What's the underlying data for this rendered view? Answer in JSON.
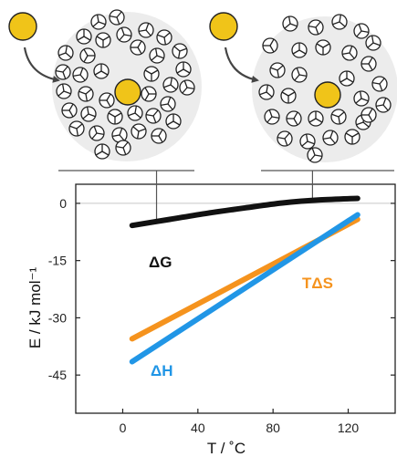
{
  "chart_data": {
    "type": "line",
    "xlabel": "T / ˚C",
    "ylabel": "E / kJ mol⁻¹",
    "xlim": [
      -25,
      145
    ],
    "ylim": [
      -55,
      5
    ],
    "xticks": [
      "0",
      "40",
      "80",
      "120"
    ],
    "yticks": [
      "0",
      "-15",
      "-30",
      "-45"
    ],
    "xtick_values": [
      0,
      40,
      80,
      120
    ],
    "ytick_values": [
      0,
      -15,
      -30,
      -45
    ],
    "grid": false,
    "zero_line": true,
    "series": [
      {
        "name": "ΔG",
        "color": "#111111",
        "x": [
          5,
          25,
          45,
          65,
          85,
          105,
          125
        ],
        "y": [
          -5.8,
          -4.2,
          -2.6,
          -1.2,
          0.1,
          0.9,
          1.3
        ]
      },
      {
        "name": "TΔS",
        "color": "#f5931e",
        "x": [
          5,
          125
        ],
        "y": [
          -35.5,
          -4.2
        ]
      },
      {
        "name": "ΔH",
        "color": "#2196e6",
        "x": [
          5,
          125
        ],
        "y": [
          -41.5,
          -3.0
        ]
      }
    ]
  },
  "illustration": {
    "ligand_color": "#f0c419",
    "cluster_color": "#e6e6e6",
    "pointer_temperatures": [
      18,
      101
    ]
  }
}
